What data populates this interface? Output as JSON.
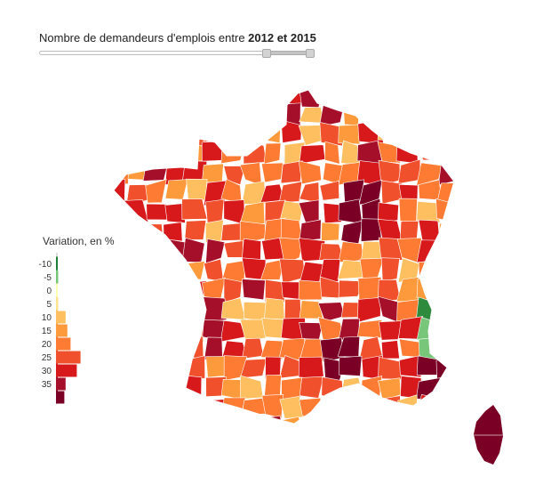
{
  "header": {
    "title_prefix": "Nombre de demandeurs d'emplois entre ",
    "year_start": "2012",
    "connector": " et ",
    "year_end": "2015"
  },
  "slider": {
    "range_start_fraction": 0.83,
    "range_end_fraction": 0.99
  },
  "legend": {
    "title": "Variation, en %",
    "bins": [
      {
        "label": "-10",
        "value": -10,
        "share": 0,
        "color": "#1a7f37"
      },
      {
        "label": "-5",
        "value": -5,
        "share": 0.03,
        "color": "#78c679"
      },
      {
        "label": "0",
        "value": 0,
        "share": 0,
        "color": "#ffffb2"
      },
      {
        "label": "5",
        "value": 5,
        "share": 0.02,
        "color": "#fee391"
      },
      {
        "label": "10",
        "value": 10,
        "share": 0.35,
        "color": "#fdbf5f"
      },
      {
        "label": "15",
        "value": 15,
        "share": 0.42,
        "color": "#fd9a3c"
      },
      {
        "label": "20",
        "value": 20,
        "share": 0.55,
        "color": "#fd7b32"
      },
      {
        "label": "25",
        "value": 25,
        "share": 0.95,
        "color": "#f0502c"
      },
      {
        "label": "30",
        "value": 30,
        "share": 0.8,
        "color": "#d7191c"
      },
      {
        "label": "35",
        "value": 35,
        "share": 0.35,
        "color": "#a50f2a"
      },
      {
        "label": "",
        "value": 40,
        "share": 0.3,
        "color": "#7a0025"
      }
    ]
  },
  "colors": {
    "dark_red": "#7a0025",
    "crimson": "#a50f2a",
    "red": "#d7191c",
    "red_orange": "#f0502c",
    "orange": "#fd7b32",
    "light_orange": "#fd9a3c",
    "yellow_orange": "#fdbf5f",
    "pale_yellow": "#fee391",
    "green_dark": "#2e8b3e",
    "green_light": "#78c679",
    "border": "#ffffff"
  }
}
